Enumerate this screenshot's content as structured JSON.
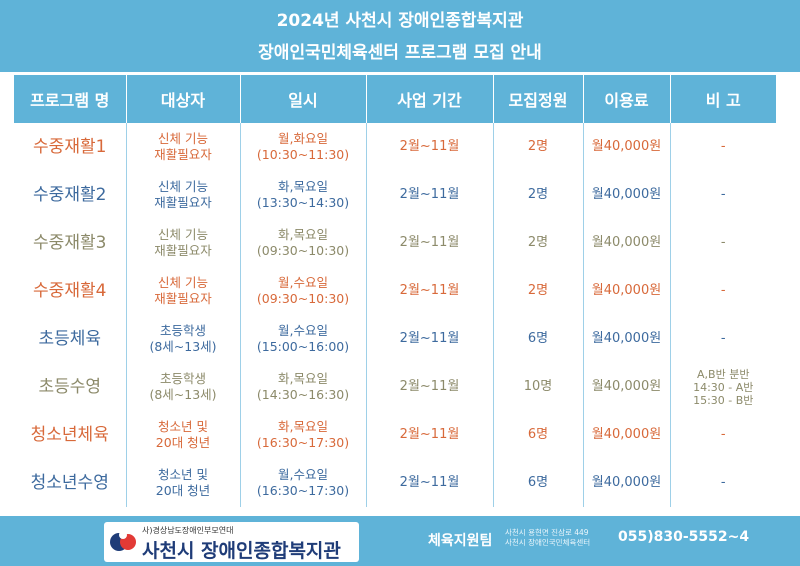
{
  "header": {
    "line1": "2024년 사천시 장애인종합복지관",
    "line2": "장애인국민체육센터 프로그램 모집 안내"
  },
  "table": {
    "columns": [
      "프로그램 명",
      "대상자",
      "일시",
      "사업 기간",
      "모집정원",
      "이용료",
      "비 고"
    ],
    "rows": [
      {
        "color": "#d8693a",
        "program": "수중재활1",
        "target1": "신체 기능",
        "target2": "재활필요자",
        "day": "월,화요일",
        "time": "(10:30~11:30)",
        "period": "2월~11월",
        "capacity": "2명",
        "fee": "월40,000원",
        "note1": "-",
        "note2": "",
        "note3": ""
      },
      {
        "color": "#3d6a9e",
        "program": "수중재활2",
        "target1": "신체 기능",
        "target2": "재활필요자",
        "day": "화,목요일",
        "time": "(13:30~14:30)",
        "period": "2월~11월",
        "capacity": "2명",
        "fee": "월40,000원",
        "note1": "-",
        "note2": "",
        "note3": ""
      },
      {
        "color": "#8c8a6a",
        "program": "수중재활3",
        "target1": "신체 기능",
        "target2": "재활필요자",
        "day": "화,목요일",
        "time": "(09:30~10:30)",
        "period": "2월~11월",
        "capacity": "2명",
        "fee": "월40,000원",
        "note1": "-",
        "note2": "",
        "note3": ""
      },
      {
        "color": "#d8693a",
        "program": "수중재활4",
        "target1": "신체 기능",
        "target2": "재활필요자",
        "day": "월,수요일",
        "time": "(09:30~10:30)",
        "period": "2월~11월",
        "capacity": "2명",
        "fee": "월40,000원",
        "note1": "-",
        "note2": "",
        "note3": ""
      },
      {
        "color": "#3d6a9e",
        "program": "초등체육",
        "target1": "초등학생",
        "target2": "(8세~13세)",
        "day": "월,수요일",
        "time": "(15:00~16:00)",
        "period": "2월~11월",
        "capacity": "6명",
        "fee": "월40,000원",
        "note1": "-",
        "note2": "",
        "note3": ""
      },
      {
        "color": "#8c8a6a",
        "program": "초등수영",
        "target1": "초등학생",
        "target2": "(8세~13세)",
        "day": "화,목요일",
        "time": "(14:30~16:30)",
        "period": "2월~11월",
        "capacity": "10명",
        "fee": "월40,000원",
        "note1": "A,B반 분반",
        "note2": "14:30 - A반",
        "note3": "15:30 - B반"
      },
      {
        "color": "#d8693a",
        "program": "청소년체육",
        "target1": "청소년 및",
        "target2": "20대 청년",
        "day": "화,목요일",
        "time": "(16:30~17:30)",
        "period": "2월~11월",
        "capacity": "6명",
        "fee": "월40,000원",
        "note1": "-",
        "note2": "",
        "note3": ""
      },
      {
        "color": "#3d6a9e",
        "program": "청소년수영",
        "target1": "청소년 및",
        "target2": "20대 청년",
        "day": "월,수요일",
        "time": "(16:30~17:30)",
        "period": "2월~11월",
        "capacity": "6명",
        "fee": "월40,000원",
        "note1": "-",
        "note2": "",
        "note3": ""
      }
    ]
  },
  "footer": {
    "logo_sub": "사)경상남도장애인부모연대",
    "logo_main": "사천시 장애인종합복지관",
    "team": "체육지원팀",
    "addr1": "사천시 용현면 진삼로 449",
    "addr2": "사천시 장애인국민체육센터",
    "phone": "055)830-5552~4"
  }
}
